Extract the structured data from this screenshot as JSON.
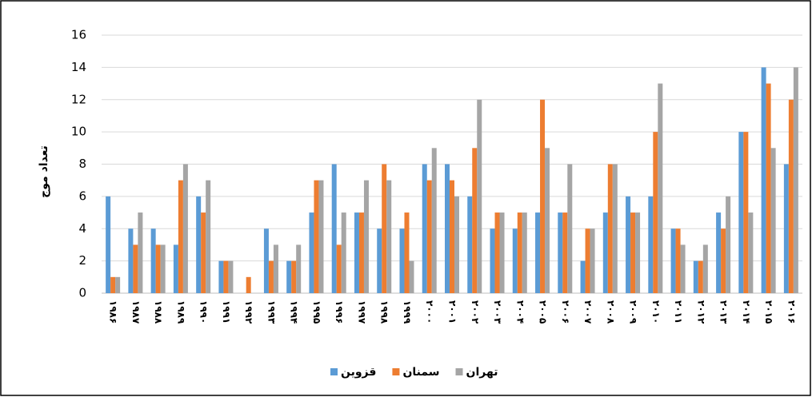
{
  "chart_data": {
    "type": "bar",
    "y_label": "تعداد موج",
    "categories": [
      "۱۹۸۶",
      "۱۹۸۷",
      "۱۹۸۸",
      "۱۹۸۹",
      "۱۹۹۰",
      "۱۹۹۱",
      "۱۹۹۲",
      "۱۹۹۳",
      "۱۹۹۴",
      "۱۹۹۵",
      "۱۹۹۶",
      "۱۹۹۷",
      "۱۹۹۸",
      "۱۹۹۹",
      "۲۰۰۰",
      "۲۰۰۱",
      "۲۰۰۲",
      "۲۰۰۳",
      "۲۰۰۴",
      "۲۰۰۵",
      "۲۰۰۶",
      "۲۰۰۷",
      "۲۰۰۸",
      "۲۰۰۹",
      "۲۰۱۰",
      "۲۰۱۱",
      "۲۰۱۲",
      "۲۰۱۳",
      "۲۰۱۴",
      "۲۰۱۵",
      "۲۰۱۶"
    ],
    "series": [
      {
        "name": "قزوین",
        "color": "#5b9bd5",
        "values": [
          6,
          4,
          4,
          3,
          6,
          2,
          0,
          4,
          2,
          5,
          8,
          5,
          4,
          4,
          8,
          8,
          6,
          4,
          4,
          5,
          5,
          2,
          5,
          6,
          6,
          4,
          2,
          5,
          10,
          14,
          8
        ]
      },
      {
        "name": "سمنان",
        "color": "#ed7d31",
        "values": [
          1,
          3,
          3,
          7,
          5,
          2,
          1,
          2,
          2,
          7,
          3,
          5,
          8,
          5,
          7,
          7,
          9,
          5,
          5,
          12,
          5,
          4,
          8,
          5,
          10,
          4,
          2,
          4,
          10,
          13,
          12
        ]
      },
      {
        "name": "تهران",
        "color": "#a5a5a5",
        "values": [
          1,
          5,
          3,
          8,
          7,
          2,
          0,
          3,
          3,
          7,
          5,
          7,
          7,
          2,
          9,
          6,
          12,
          5,
          5,
          9,
          8,
          4,
          8,
          5,
          13,
          3,
          3,
          6,
          5,
          9,
          14
        ]
      }
    ],
    "ylim": [
      0,
      16
    ],
    "yticks": [
      0,
      2,
      4,
      6,
      8,
      10,
      12,
      14,
      16
    ],
    "grid": true
  }
}
